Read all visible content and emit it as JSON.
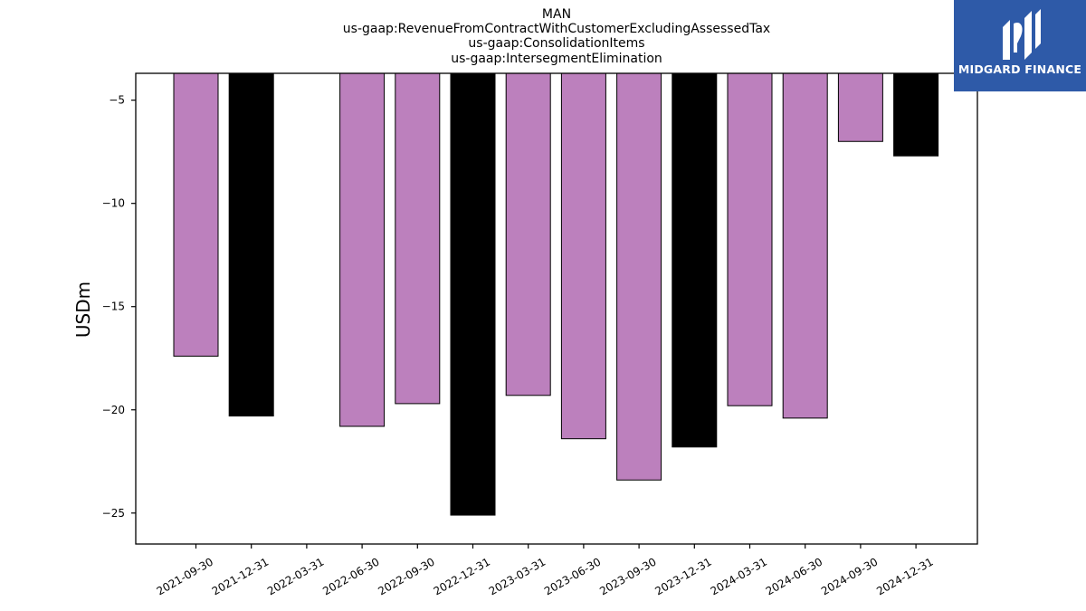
{
  "chart_data": {
    "type": "bar",
    "title_lines": [
      "MAN",
      "us-gaap:RevenueFromContractWithCustomerExcludingAssessedTax",
      "us-gaap:ConsolidationItems",
      "us-gaap:IntersegmentElimination"
    ],
    "ylabel": "USDm",
    "xlabel": "",
    "categories": [
      "2021-09-30",
      "2021-12-31",
      "2022-03-31",
      "2022-06-30",
      "2022-09-30",
      "2022-12-31",
      "2023-03-31",
      "2023-06-30",
      "2023-09-30",
      "2023-12-31",
      "2024-03-31",
      "2024-06-30",
      "2024-09-30",
      "2024-12-31"
    ],
    "values": [
      -17.4,
      -20.3,
      null,
      -20.8,
      -19.7,
      -25.1,
      -19.3,
      -21.4,
      -23.4,
      -21.8,
      -19.8,
      -20.4,
      -7.0,
      -7.7
    ],
    "bar_colors": [
      "#bc80bd",
      "#000000",
      "#bc80bd",
      "#bc80bd",
      "#bc80bd",
      "#000000",
      "#bc80bd",
      "#bc80bd",
      "#bc80bd",
      "#000000",
      "#bc80bd",
      "#bc80bd",
      "#bc80bd",
      "#000000"
    ],
    "ylim": [
      -26.5,
      -3.7
    ],
    "yticks": [
      -5,
      -10,
      -15,
      -20,
      -25
    ],
    "grid": false,
    "legend": "none"
  },
  "logo": {
    "text": "MIDGARD FINANCE",
    "background": "#2e5aa8"
  }
}
